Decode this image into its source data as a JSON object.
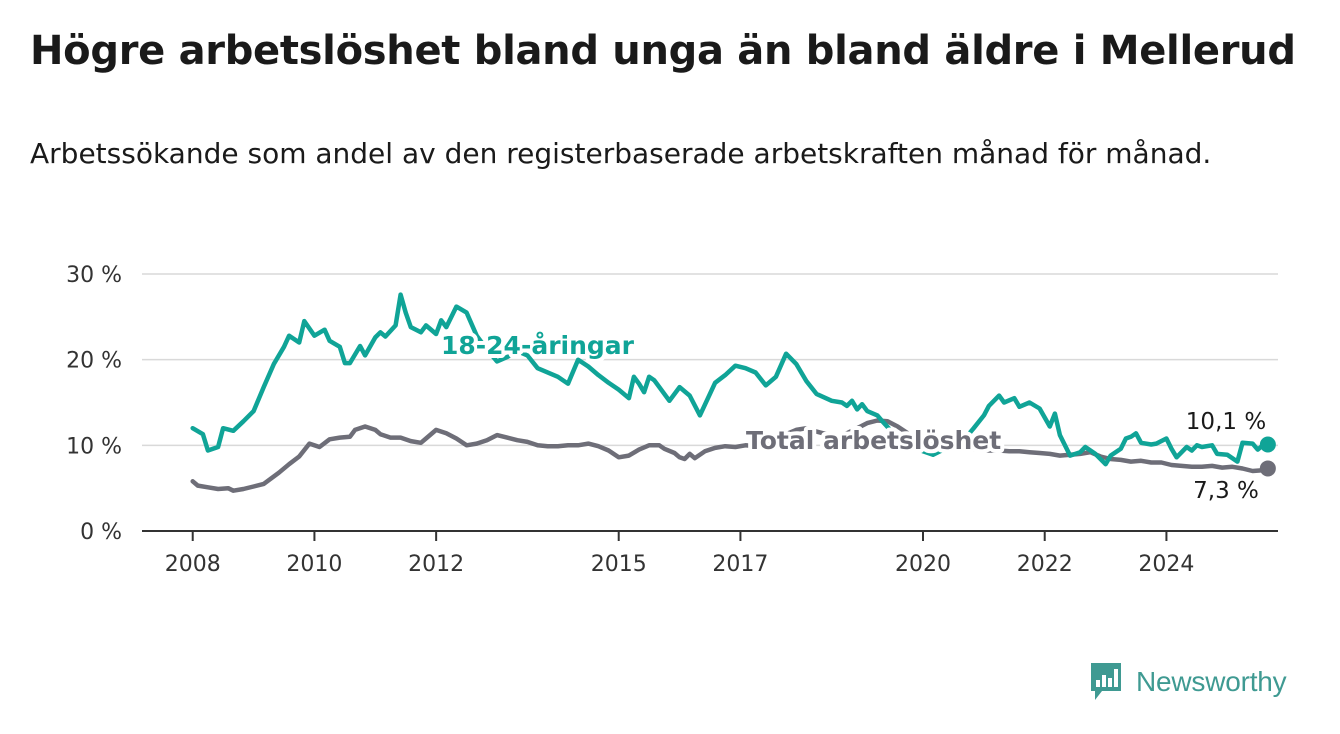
{
  "header": {
    "title": "Högre arbetslöshet bland unga än bland äldre i Mellerud",
    "subtitle": "Arbetssökande som andel av den registerbaserade arbetskraften månad för månad."
  },
  "brand": {
    "name": "Newsworthy",
    "icon": "newsworthy-logo-icon",
    "color": "#3f9a92"
  },
  "chart_data": {
    "type": "line",
    "title": "Högre arbetslöshet bland unga än bland äldre i Mellerud",
    "subtitle": "Arbetssökande som andel av den registerbaserade arbetskraften månad för månad.",
    "xlabel": "",
    "ylabel": "",
    "ylim": [
      0,
      30
    ],
    "xlim": [
      "2007-03",
      "2025-11"
    ],
    "y_ticks": [
      0,
      10,
      20,
      30
    ],
    "y_tick_labels": [
      "0 %",
      "10 %",
      "20 %",
      "30 %"
    ],
    "x_ticks": [
      "2008-01",
      "2010-01",
      "2012-01",
      "2015-01",
      "2017-01",
      "2020-01",
      "2022-01",
      "2024-01"
    ],
    "x_tick_labels": [
      "2008",
      "2010",
      "2012",
      "2015",
      "2017",
      "2020",
      "2022",
      "2024"
    ],
    "grid": "horizontal",
    "legend": "none (direct labels on lines)",
    "series": [
      {
        "name": "18-24-åringar",
        "color": "#10a497",
        "end_label": "10,1 %",
        "points": [
          [
            "2008-01",
            12.0
          ],
          [
            "2008-03",
            11.3
          ],
          [
            "2008-04",
            9.4
          ],
          [
            "2008-06",
            9.8
          ],
          [
            "2008-07",
            12.0
          ],
          [
            "2008-09",
            11.7
          ],
          [
            "2008-11",
            12.8
          ],
          [
            "2009-01",
            14.0
          ],
          [
            "2009-03",
            16.8
          ],
          [
            "2009-05",
            19.5
          ],
          [
            "2009-07",
            21.5
          ],
          [
            "2009-08",
            22.8
          ],
          [
            "2009-10",
            22.0
          ],
          [
            "2009-11",
            24.5
          ],
          [
            "2010-01",
            22.8
          ],
          [
            "2010-03",
            23.5
          ],
          [
            "2010-04",
            22.2
          ],
          [
            "2010-06",
            21.5
          ],
          [
            "2010-07",
            19.6
          ],
          [
            "2010-08",
            19.6
          ],
          [
            "2010-10",
            21.6
          ],
          [
            "2010-11",
            20.5
          ],
          [
            "2011-01",
            22.6
          ],
          [
            "2011-02",
            23.2
          ],
          [
            "2011-03",
            22.7
          ],
          [
            "2011-05",
            24.0
          ],
          [
            "2011-06",
            27.6
          ],
          [
            "2011-07",
            25.5
          ],
          [
            "2011-08",
            23.8
          ],
          [
            "2011-10",
            23.2
          ],
          [
            "2011-11",
            24.0
          ],
          [
            "2012-01",
            23.0
          ],
          [
            "2012-02",
            24.6
          ],
          [
            "2012-03",
            23.8
          ],
          [
            "2012-05",
            26.2
          ],
          [
            "2012-07",
            25.5
          ],
          [
            "2012-09",
            22.8
          ],
          [
            "2012-11",
            21.2
          ],
          [
            "2013-01",
            19.8
          ],
          [
            "2013-03",
            20.3
          ],
          [
            "2013-05",
            21.0
          ],
          [
            "2013-07",
            20.5
          ],
          [
            "2013-09",
            19.0
          ],
          [
            "2014-01",
            18.0
          ],
          [
            "2014-03",
            17.2
          ],
          [
            "2014-05",
            20.0
          ],
          [
            "2014-07",
            19.2
          ],
          [
            "2014-09",
            18.2
          ],
          [
            "2014-11",
            17.3
          ],
          [
            "2015-01",
            16.5
          ],
          [
            "2015-03",
            15.5
          ],
          [
            "2015-04",
            18.0
          ],
          [
            "2015-05",
            17.2
          ],
          [
            "2015-06",
            16.2
          ],
          [
            "2015-07",
            18.0
          ],
          [
            "2015-08",
            17.6
          ],
          [
            "2015-09",
            16.8
          ],
          [
            "2015-11",
            15.2
          ],
          [
            "2016-01",
            16.8
          ],
          [
            "2016-03",
            15.8
          ],
          [
            "2016-05",
            13.5
          ],
          [
            "2016-08",
            17.3
          ],
          [
            "2016-10",
            18.2
          ],
          [
            "2016-12",
            19.3
          ],
          [
            "2017-02",
            19.0
          ],
          [
            "2017-04",
            18.5
          ],
          [
            "2017-06",
            17.0
          ],
          [
            "2017-08",
            18.0
          ],
          [
            "2017-10",
            20.7
          ],
          [
            "2017-12",
            19.5
          ],
          [
            "2018-02",
            17.5
          ],
          [
            "2018-04",
            16.0
          ],
          [
            "2018-07",
            15.2
          ],
          [
            "2018-09",
            15.0
          ],
          [
            "2018-10",
            14.6
          ],
          [
            "2018-11",
            15.2
          ],
          [
            "2018-12",
            14.2
          ],
          [
            "2019-01",
            14.8
          ],
          [
            "2019-02",
            14.0
          ],
          [
            "2019-04",
            13.5
          ],
          [
            "2019-05",
            12.8
          ],
          [
            "2019-07",
            11.5
          ],
          [
            "2019-09",
            10.6
          ],
          [
            "2019-11",
            10.0
          ],
          [
            "2020-01",
            9.3
          ],
          [
            "2020-03",
            8.9
          ],
          [
            "2020-05",
            9.5
          ],
          [
            "2020-07",
            9.9
          ],
          [
            "2020-09",
            10.6
          ],
          [
            "2020-11",
            12.0
          ],
          [
            "2021-01",
            13.5
          ],
          [
            "2021-02",
            14.6
          ],
          [
            "2021-04",
            15.8
          ],
          [
            "2021-05",
            15.0
          ],
          [
            "2021-07",
            15.5
          ],
          [
            "2021-08",
            14.5
          ],
          [
            "2021-10",
            15.0
          ],
          [
            "2021-12",
            14.3
          ],
          [
            "2022-02",
            12.2
          ],
          [
            "2022-03",
            13.7
          ],
          [
            "2022-04",
            11.2
          ],
          [
            "2022-06",
            8.8
          ],
          [
            "2022-08",
            9.2
          ],
          [
            "2022-09",
            9.8
          ],
          [
            "2022-11",
            9.0
          ],
          [
            "2023-01",
            7.8
          ],
          [
            "2023-02",
            8.8
          ],
          [
            "2023-04",
            9.6
          ],
          [
            "2023-05",
            10.8
          ],
          [
            "2023-06",
            11.0
          ],
          [
            "2023-07",
            11.4
          ],
          [
            "2023-08",
            10.3
          ],
          [
            "2023-10",
            10.1
          ],
          [
            "2023-11",
            10.2
          ],
          [
            "2024-01",
            10.8
          ],
          [
            "2024-02",
            9.6
          ],
          [
            "2024-03",
            8.6
          ],
          [
            "2024-05",
            9.8
          ],
          [
            "2024-06",
            9.4
          ],
          [
            "2024-07",
            10.0
          ],
          [
            "2024-08",
            9.8
          ],
          [
            "2024-10",
            10.0
          ],
          [
            "2024-11",
            9.0
          ],
          [
            "2025-01",
            8.9
          ],
          [
            "2025-03",
            8.1
          ],
          [
            "2025-04",
            10.3
          ],
          [
            "2025-06",
            10.2
          ],
          [
            "2025-07",
            9.5
          ],
          [
            "2025-08",
            10.0
          ],
          [
            "2025-09",
            10.1
          ]
        ]
      },
      {
        "name": "Total arbetslöshet",
        "color": "#6e6e78",
        "end_label": "7,3 %",
        "points": [
          [
            "2008-01",
            5.8
          ],
          [
            "2008-02",
            5.3
          ],
          [
            "2008-04",
            5.1
          ],
          [
            "2008-06",
            4.9
          ],
          [
            "2008-08",
            5.0
          ],
          [
            "2008-09",
            4.7
          ],
          [
            "2008-11",
            4.9
          ],
          [
            "2009-01",
            5.2
          ],
          [
            "2009-03",
            5.5
          ],
          [
            "2009-06",
            6.8
          ],
          [
            "2009-08",
            7.8
          ],
          [
            "2009-10",
            8.7
          ],
          [
            "2009-12",
            10.2
          ],
          [
            "2010-02",
            9.8
          ],
          [
            "2010-04",
            10.7
          ],
          [
            "2010-06",
            10.9
          ],
          [
            "2010-08",
            11.0
          ],
          [
            "2010-09",
            11.8
          ],
          [
            "2010-11",
            12.2
          ],
          [
            "2011-01",
            11.8
          ],
          [
            "2011-02",
            11.3
          ],
          [
            "2011-04",
            10.9
          ],
          [
            "2011-06",
            10.9
          ],
          [
            "2011-08",
            10.5
          ],
          [
            "2011-10",
            10.3
          ],
          [
            "2011-11",
            10.8
          ],
          [
            "2012-01",
            11.8
          ],
          [
            "2012-03",
            11.4
          ],
          [
            "2012-05",
            10.8
          ],
          [
            "2012-07",
            10.0
          ],
          [
            "2012-09",
            10.2
          ],
          [
            "2012-11",
            10.6
          ],
          [
            "2013-01",
            11.2
          ],
          [
            "2013-03",
            10.9
          ],
          [
            "2013-05",
            10.6
          ],
          [
            "2013-07",
            10.4
          ],
          [
            "2013-09",
            10.0
          ],
          [
            "2013-11",
            9.9
          ],
          [
            "2014-01",
            9.9
          ],
          [
            "2014-03",
            10.0
          ],
          [
            "2014-05",
            10.0
          ],
          [
            "2014-07",
            10.2
          ],
          [
            "2014-09",
            9.9
          ],
          [
            "2014-11",
            9.4
          ],
          [
            "2015-01",
            8.6
          ],
          [
            "2015-03",
            8.8
          ],
          [
            "2015-05",
            9.5
          ],
          [
            "2015-07",
            10.0
          ],
          [
            "2015-09",
            10.0
          ],
          [
            "2015-10",
            9.6
          ],
          [
            "2015-12",
            9.1
          ],
          [
            "2016-01",
            8.6
          ],
          [
            "2016-02",
            8.4
          ],
          [
            "2016-03",
            9.0
          ],
          [
            "2016-04",
            8.5
          ],
          [
            "2016-06",
            9.3
          ],
          [
            "2016-08",
            9.7
          ],
          [
            "2016-10",
            9.9
          ],
          [
            "2016-12",
            9.8
          ],
          [
            "2017-02",
            10.0
          ],
          [
            "2017-04",
            9.9
          ],
          [
            "2017-06",
            10.2
          ],
          [
            "2017-08",
            10.7
          ],
          [
            "2017-10",
            11.3
          ],
          [
            "2017-12",
            11.8
          ],
          [
            "2018-02",
            12.0
          ],
          [
            "2018-04",
            11.6
          ],
          [
            "2018-06",
            11.3
          ],
          [
            "2018-08",
            11.0
          ],
          [
            "2018-10",
            11.4
          ],
          [
            "2018-12",
            12.0
          ],
          [
            "2019-02",
            12.6
          ],
          [
            "2019-04",
            12.9
          ],
          [
            "2019-06",
            12.8
          ],
          [
            "2019-08",
            12.2
          ],
          [
            "2019-10",
            11.4
          ],
          [
            "2019-12",
            10.5
          ],
          [
            "2020-02",
            10.3
          ],
          [
            "2020-04",
            10.1
          ],
          [
            "2020-06",
            10.0
          ],
          [
            "2020-08",
            9.8
          ],
          [
            "2020-10",
            9.7
          ],
          [
            "2020-12",
            9.5
          ],
          [
            "2021-02",
            9.4
          ],
          [
            "2021-04",
            9.4
          ],
          [
            "2021-06",
            9.3
          ],
          [
            "2021-08",
            9.3
          ],
          [
            "2021-10",
            9.2
          ],
          [
            "2021-12",
            9.1
          ],
          [
            "2022-02",
            9.0
          ],
          [
            "2022-04",
            8.8
          ],
          [
            "2022-06",
            8.9
          ],
          [
            "2022-08",
            9.0
          ],
          [
            "2022-10",
            9.2
          ],
          [
            "2022-12",
            8.7
          ],
          [
            "2023-02",
            8.4
          ],
          [
            "2023-04",
            8.3
          ],
          [
            "2023-06",
            8.1
          ],
          [
            "2023-08",
            8.2
          ],
          [
            "2023-10",
            8.0
          ],
          [
            "2023-12",
            8.0
          ],
          [
            "2024-02",
            7.7
          ],
          [
            "2024-04",
            7.6
          ],
          [
            "2024-06",
            7.5
          ],
          [
            "2024-08",
            7.5
          ],
          [
            "2024-10",
            7.6
          ],
          [
            "2024-12",
            7.4
          ],
          [
            "2025-02",
            7.5
          ],
          [
            "2025-04",
            7.3
          ],
          [
            "2025-06",
            7.0
          ],
          [
            "2025-08",
            7.1
          ],
          [
            "2025-09",
            7.3
          ]
        ]
      }
    ]
  }
}
